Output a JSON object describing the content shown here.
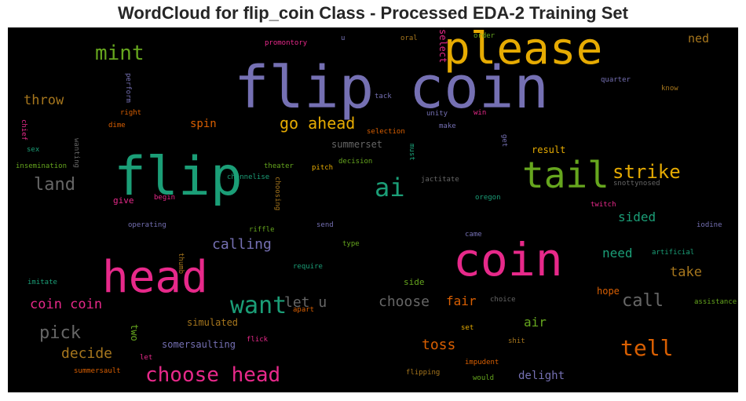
{
  "chart_data": {
    "type": "wordcloud",
    "title": "WordCloud for flip_coin Class - Processed EDA-2 Training Set",
    "background": "#000000",
    "words": [
      {
        "text": "flip coin",
        "color": "#7570b3"
      },
      {
        "text": "please",
        "color": "#e6ab02"
      },
      {
        "text": "flip",
        "color": "#1b9e77"
      },
      {
        "text": "coin",
        "color": "#e7298a"
      },
      {
        "text": "head",
        "color": "#e7298a"
      },
      {
        "text": "tail",
        "color": "#66a61e"
      },
      {
        "text": "mint",
        "color": "#66a61e"
      },
      {
        "text": "ai",
        "color": "#1b9e77"
      },
      {
        "text": "strike",
        "color": "#e6ab02"
      },
      {
        "text": "want",
        "color": "#1b9e77"
      },
      {
        "text": "choose head",
        "color": "#e7298a"
      },
      {
        "text": "tell",
        "color": "#d95f02"
      },
      {
        "text": "go ahead",
        "color": "#e6ab02"
      },
      {
        "text": "land",
        "color": "#666666"
      },
      {
        "text": "call",
        "color": "#666666"
      },
      {
        "text": "throw",
        "color": "#a6761d"
      },
      {
        "text": "pick",
        "color": "#666666"
      },
      {
        "text": "coin coin",
        "color": "#e7298a"
      },
      {
        "text": "decide",
        "color": "#a6761d"
      },
      {
        "text": "choose",
        "color": "#666666"
      },
      {
        "text": "calling",
        "color": "#7570b3"
      },
      {
        "text": "let u",
        "color": "#666666"
      },
      {
        "text": "toss",
        "color": "#d95f02"
      },
      {
        "text": "need",
        "color": "#1b9e77"
      },
      {
        "text": "take",
        "color": "#a6761d"
      },
      {
        "text": "sided",
        "color": "#1b9e77"
      },
      {
        "text": "spin",
        "color": "#d95f02"
      },
      {
        "text": "fair",
        "color": "#d95f02"
      },
      {
        "text": "air",
        "color": "#66a61e"
      },
      {
        "text": "ned",
        "color": "#a6761d"
      },
      {
        "text": "delight",
        "color": "#7570b3"
      },
      {
        "text": "summerset",
        "color": "#666666"
      },
      {
        "text": "result",
        "color": "#e6ab02"
      },
      {
        "text": "simulated",
        "color": "#a6761d"
      },
      {
        "text": "somersaulting",
        "color": "#7570b3"
      },
      {
        "text": "hope",
        "color": "#d95f02"
      },
      {
        "text": "two",
        "color": "#66a61e"
      },
      {
        "text": "promontory",
        "color": "#e7298a"
      },
      {
        "text": "u",
        "color": "#7570b3"
      },
      {
        "text": "oral",
        "color": "#a6761d"
      },
      {
        "text": "select",
        "color": "#e7298a"
      },
      {
        "text": "order",
        "color": "#66a61e"
      },
      {
        "text": "perform",
        "color": "#7570b3"
      },
      {
        "text": "quarter",
        "color": "#7570b3"
      },
      {
        "text": "know",
        "color": "#a6761d"
      },
      {
        "text": "tack",
        "color": "#7570b3"
      },
      {
        "text": "right",
        "color": "#d95f02"
      },
      {
        "text": "unity",
        "color": "#7570b3"
      },
      {
        "text": "win",
        "color": "#e7298a"
      },
      {
        "text": "chief",
        "color": "#e7298a"
      },
      {
        "text": "dime",
        "color": "#d95f02"
      },
      {
        "text": "make",
        "color": "#7570b3"
      },
      {
        "text": "selection",
        "color": "#d95f02"
      },
      {
        "text": "get",
        "color": "#7570b3"
      },
      {
        "text": "sex",
        "color": "#1b9e77"
      },
      {
        "text": "wanting",
        "color": "#666666"
      },
      {
        "text": "must",
        "color": "#1b9e77"
      },
      {
        "text": "insemination",
        "color": "#66a61e"
      },
      {
        "text": "theater",
        "color": "#66a61e"
      },
      {
        "text": "pitch",
        "color": "#e6ab02"
      },
      {
        "text": "decision",
        "color": "#66a61e"
      },
      {
        "text": "channelise",
        "color": "#1b9e77"
      },
      {
        "text": "choosing",
        "color": "#a6761d"
      },
      {
        "text": "jactitate",
        "color": "#666666"
      },
      {
        "text": "snottynosed",
        "color": "#666666"
      },
      {
        "text": "give",
        "color": "#e7298a"
      },
      {
        "text": "begin",
        "color": "#e7298a"
      },
      {
        "text": "oregon",
        "color": "#1b9e77"
      },
      {
        "text": "twitch",
        "color": "#e7298a"
      },
      {
        "text": "riffle",
        "color": "#66a61e"
      },
      {
        "text": "send",
        "color": "#7570b3"
      },
      {
        "text": "operating",
        "color": "#7570b3"
      },
      {
        "text": "iodine",
        "color": "#7570b3"
      },
      {
        "text": "came",
        "color": "#7570b3"
      },
      {
        "text": "thumb",
        "color": "#a6761d"
      },
      {
        "text": "type",
        "color": "#66a61e"
      },
      {
        "text": "artificial",
        "color": "#1b9e77"
      },
      {
        "text": "require",
        "color": "#1b9e77"
      },
      {
        "text": "imitate",
        "color": "#1b9e77"
      },
      {
        "text": "side",
        "color": "#66a61e"
      },
      {
        "text": "choice",
        "color": "#666666"
      },
      {
        "text": "assistance",
        "color": "#66a61e"
      },
      {
        "text": "apart",
        "color": "#d95f02"
      },
      {
        "text": "set",
        "color": "#e6ab02"
      },
      {
        "text": "flick",
        "color": "#e7298a"
      },
      {
        "text": "shit",
        "color": "#a6761d"
      },
      {
        "text": "let",
        "color": "#e7298a"
      },
      {
        "text": "impudent",
        "color": "#d95f02"
      },
      {
        "text": "summersault",
        "color": "#d95f02"
      },
      {
        "text": "flipping",
        "color": "#a6761d"
      },
      {
        "text": "would",
        "color": "#66a61e"
      }
    ]
  }
}
